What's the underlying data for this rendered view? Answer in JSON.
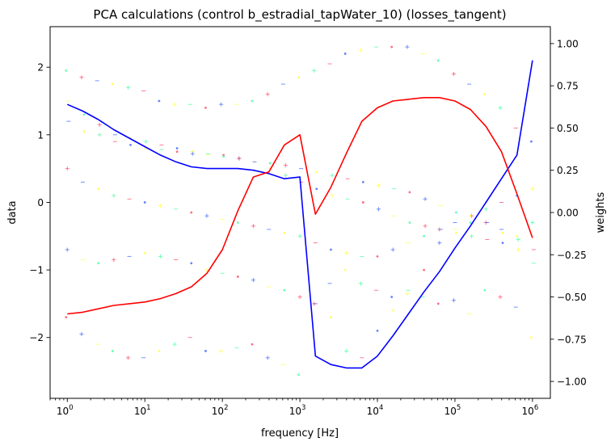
{
  "chart_data": {
    "type": "line",
    "title": "PCA calculations (control b_estradial_tapWater_10) (losses_tangent)",
    "xlabel": "frequency [Hz]",
    "ylabel": "data",
    "y2label": "weights",
    "xscale": "log",
    "xlim": [
      0.6,
      1700000.0
    ],
    "ylim": [
      -2.9,
      2.6
    ],
    "y2lim": [
      -1.1,
      1.1
    ],
    "x_ticks": [
      {
        "base": "10",
        "exp": "0"
      },
      {
        "base": "10",
        "exp": "1"
      },
      {
        "base": "10",
        "exp": "2"
      },
      {
        "base": "10",
        "exp": "3"
      },
      {
        "base": "10",
        "exp": "4"
      },
      {
        "base": "10",
        "exp": "5"
      },
      {
        "base": "10",
        "exp": "6"
      }
    ],
    "x_tick_values": [
      1,
      10,
      100,
      1000,
      10000,
      100000,
      1000000
    ],
    "y_ticks": [
      {
        "value": -2,
        "label": "−2"
      },
      {
        "value": -1,
        "label": "−1"
      },
      {
        "value": 0,
        "label": "0"
      },
      {
        "value": 1,
        "label": "1"
      },
      {
        "value": 2,
        "label": "2"
      }
    ],
    "y2_ticks": [
      {
        "value": -1.0,
        "label": "−1.00"
      },
      {
        "value": -0.75,
        "label": "−0.75"
      },
      {
        "value": -0.5,
        "label": "−0.50"
      },
      {
        "value": -0.25,
        "label": "−0.25"
      },
      {
        "value": 0.0,
        "label": "0.00"
      },
      {
        "value": 0.25,
        "label": "0.25"
      },
      {
        "value": 0.5,
        "label": "0.50"
      },
      {
        "value": 0.75,
        "label": "0.75"
      },
      {
        "value": 1.0,
        "label": "1.00"
      }
    ],
    "grid": false,
    "legend": "none",
    "x": [
      1,
      1.585,
      2.512,
      3.981,
      6.31,
      10,
      15.85,
      25.12,
      39.81,
      63.1,
      100,
      158.5,
      251.2,
      398.1,
      631,
      1000,
      1585,
      2512,
      3981,
      6310,
      10000,
      15850,
      25120,
      39810,
      63100,
      100000,
      158500,
      251200,
      398100,
      631000,
      1000000
    ],
    "series": [
      {
        "axis": "weights",
        "color": "#0000ff",
        "values": [
          0.64,
          0.6,
          0.55,
          0.49,
          0.44,
          0.39,
          0.34,
          0.3,
          0.27,
          0.26,
          0.26,
          0.26,
          0.25,
          0.23,
          0.2,
          0.21,
          -0.85,
          -0.9,
          -0.92,
          -0.92,
          -0.85,
          -0.73,
          -0.6,
          -0.47,
          -0.35,
          -0.21,
          -0.08,
          0.06,
          0.2,
          0.34,
          0.9
        ]
      },
      {
        "axis": "weights",
        "color": "#ff0000",
        "values": [
          -0.6,
          -0.59,
          -0.57,
          -0.55,
          -0.54,
          -0.53,
          -0.51,
          -0.48,
          -0.44,
          -0.36,
          -0.22,
          0.01,
          0.21,
          0.24,
          0.4,
          0.46,
          -0.01,
          0.15,
          0.35,
          0.54,
          0.62,
          0.66,
          0.67,
          0.68,
          0.68,
          0.66,
          0.61,
          0.51,
          0.36,
          0.11,
          -0.15
        ]
      }
    ],
    "scatter_colors": [
      "#ff3b5c",
      "#2e5bff",
      "#ffff33",
      "#33ff99"
    ],
    "scatter_rows": [
      [
        -1.7,
        -1.95,
        -2.1,
        -2.2,
        -2.3,
        -2.3,
        -2.2,
        -2.1,
        -2.0,
        -2.2,
        -2.2,
        -2.15,
        -2.1,
        -2.3,
        -2.4,
        -2.55,
        -1.5,
        -1.2,
        -1.0,
        -1.2,
        -1.3,
        -1.4,
        -1.35,
        -1.4,
        -1.5,
        -1.45,
        -1.65,
        -1.3,
        -1.4,
        -1.55,
        -2.0
      ],
      [
        -0.7,
        -0.85,
        -0.9,
        -0.85,
        -0.8,
        -0.75,
        -0.8,
        -0.85,
        -0.9,
        -1.0,
        -1.05,
        -1.1,
        -1.15,
        -1.25,
        -1.3,
        -1.4,
        -1.5,
        -1.7,
        -2.2,
        -2.3,
        -1.9,
        -1.6,
        -1.3,
        -1.0,
        -0.6,
        -0.4,
        -0.3,
        -0.3,
        -0.4,
        -0.5,
        -0.3
      ],
      [
        1.5,
        1.3,
        1.15,
        1.0,
        0.95,
        0.9,
        0.85,
        0.8,
        0.75,
        0.72,
        0.7,
        0.65,
        0.6,
        0.58,
        0.55,
        0.5,
        0.45,
        0.4,
        0.35,
        0.3,
        0.25,
        0.2,
        0.15,
        0.05,
        -0.05,
        -0.15,
        -0.2,
        -0.3,
        -0.45,
        -0.55,
        -0.7
      ],
      [
        1.95,
        1.85,
        1.8,
        1.75,
        1.7,
        1.65,
        1.5,
        1.45,
        1.45,
        1.4,
        1.45,
        1.45,
        1.5,
        1.6,
        1.75,
        1.85,
        1.95,
        2.05,
        2.2,
        2.25,
        2.3,
        2.3,
        2.3,
        2.2,
        2.1,
        1.9,
        1.75,
        1.6,
        1.4,
        1.1,
        0.9
      ],
      [
        0.5,
        0.3,
        0.2,
        0.1,
        0.05,
        0.0,
        -0.05,
        -0.1,
        -0.15,
        -0.2,
        -0.25,
        -0.3,
        -0.35,
        -0.4,
        -0.45,
        -0.5,
        -0.6,
        -0.7,
        -0.75,
        -0.8,
        -0.8,
        -0.7,
        -0.6,
        -0.5,
        -0.4,
        -0.3,
        -0.2,
        -0.1,
        0.0,
        0.1,
        0.2
      ],
      [
        1.2,
        1.05,
        1.0,
        0.9,
        0.85,
        0.8,
        0.78,
        0.75,
        0.72,
        0.7,
        0.68,
        0.65,
        0.6,
        0.5,
        0.4,
        0.3,
        0.2,
        0.1,
        0.05,
        0.0,
        -0.1,
        -0.2,
        -0.3,
        -0.35,
        -0.4,
        -0.45,
        -0.5,
        -0.55,
        -0.6,
        -0.7,
        -0.9
      ]
    ]
  }
}
